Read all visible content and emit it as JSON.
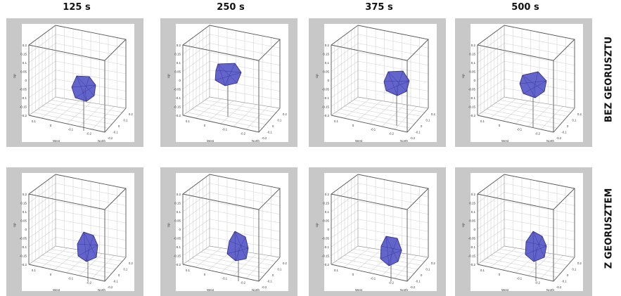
{
  "columns": [
    {
      "label": "125 s"
    },
    {
      "label": "250 s"
    },
    {
      "label": "375 s"
    },
    {
      "label": "500 s"
    }
  ],
  "rows": [
    {
      "label": "BEZ GEORUSZTU"
    },
    {
      "label": "Z GEORUSZTEM"
    }
  ],
  "axis_ticks": {
    "z": [
      "0.2",
      "0.15",
      "0.1",
      "0.05",
      "0",
      "-0.05",
      "-0.1",
      "-0.15",
      "-0.2"
    ],
    "floor_left": [
      "0.1",
      "0",
      "-0.1",
      "-0.2"
    ],
    "floor_right": [
      "0.2",
      "0.1",
      "0",
      "-0.1",
      "-0.2"
    ]
  },
  "axis_labels": {
    "z": "Up",
    "left": "West",
    "right": "North"
  },
  "colors": {
    "panel_bg": "#c8c8c8",
    "plot_bg": "#ffffff",
    "grid": "#d4d4d4",
    "edge": "#555555",
    "blob_fill": "#5757c9",
    "blob_edge": "#2a2a80"
  }
}
